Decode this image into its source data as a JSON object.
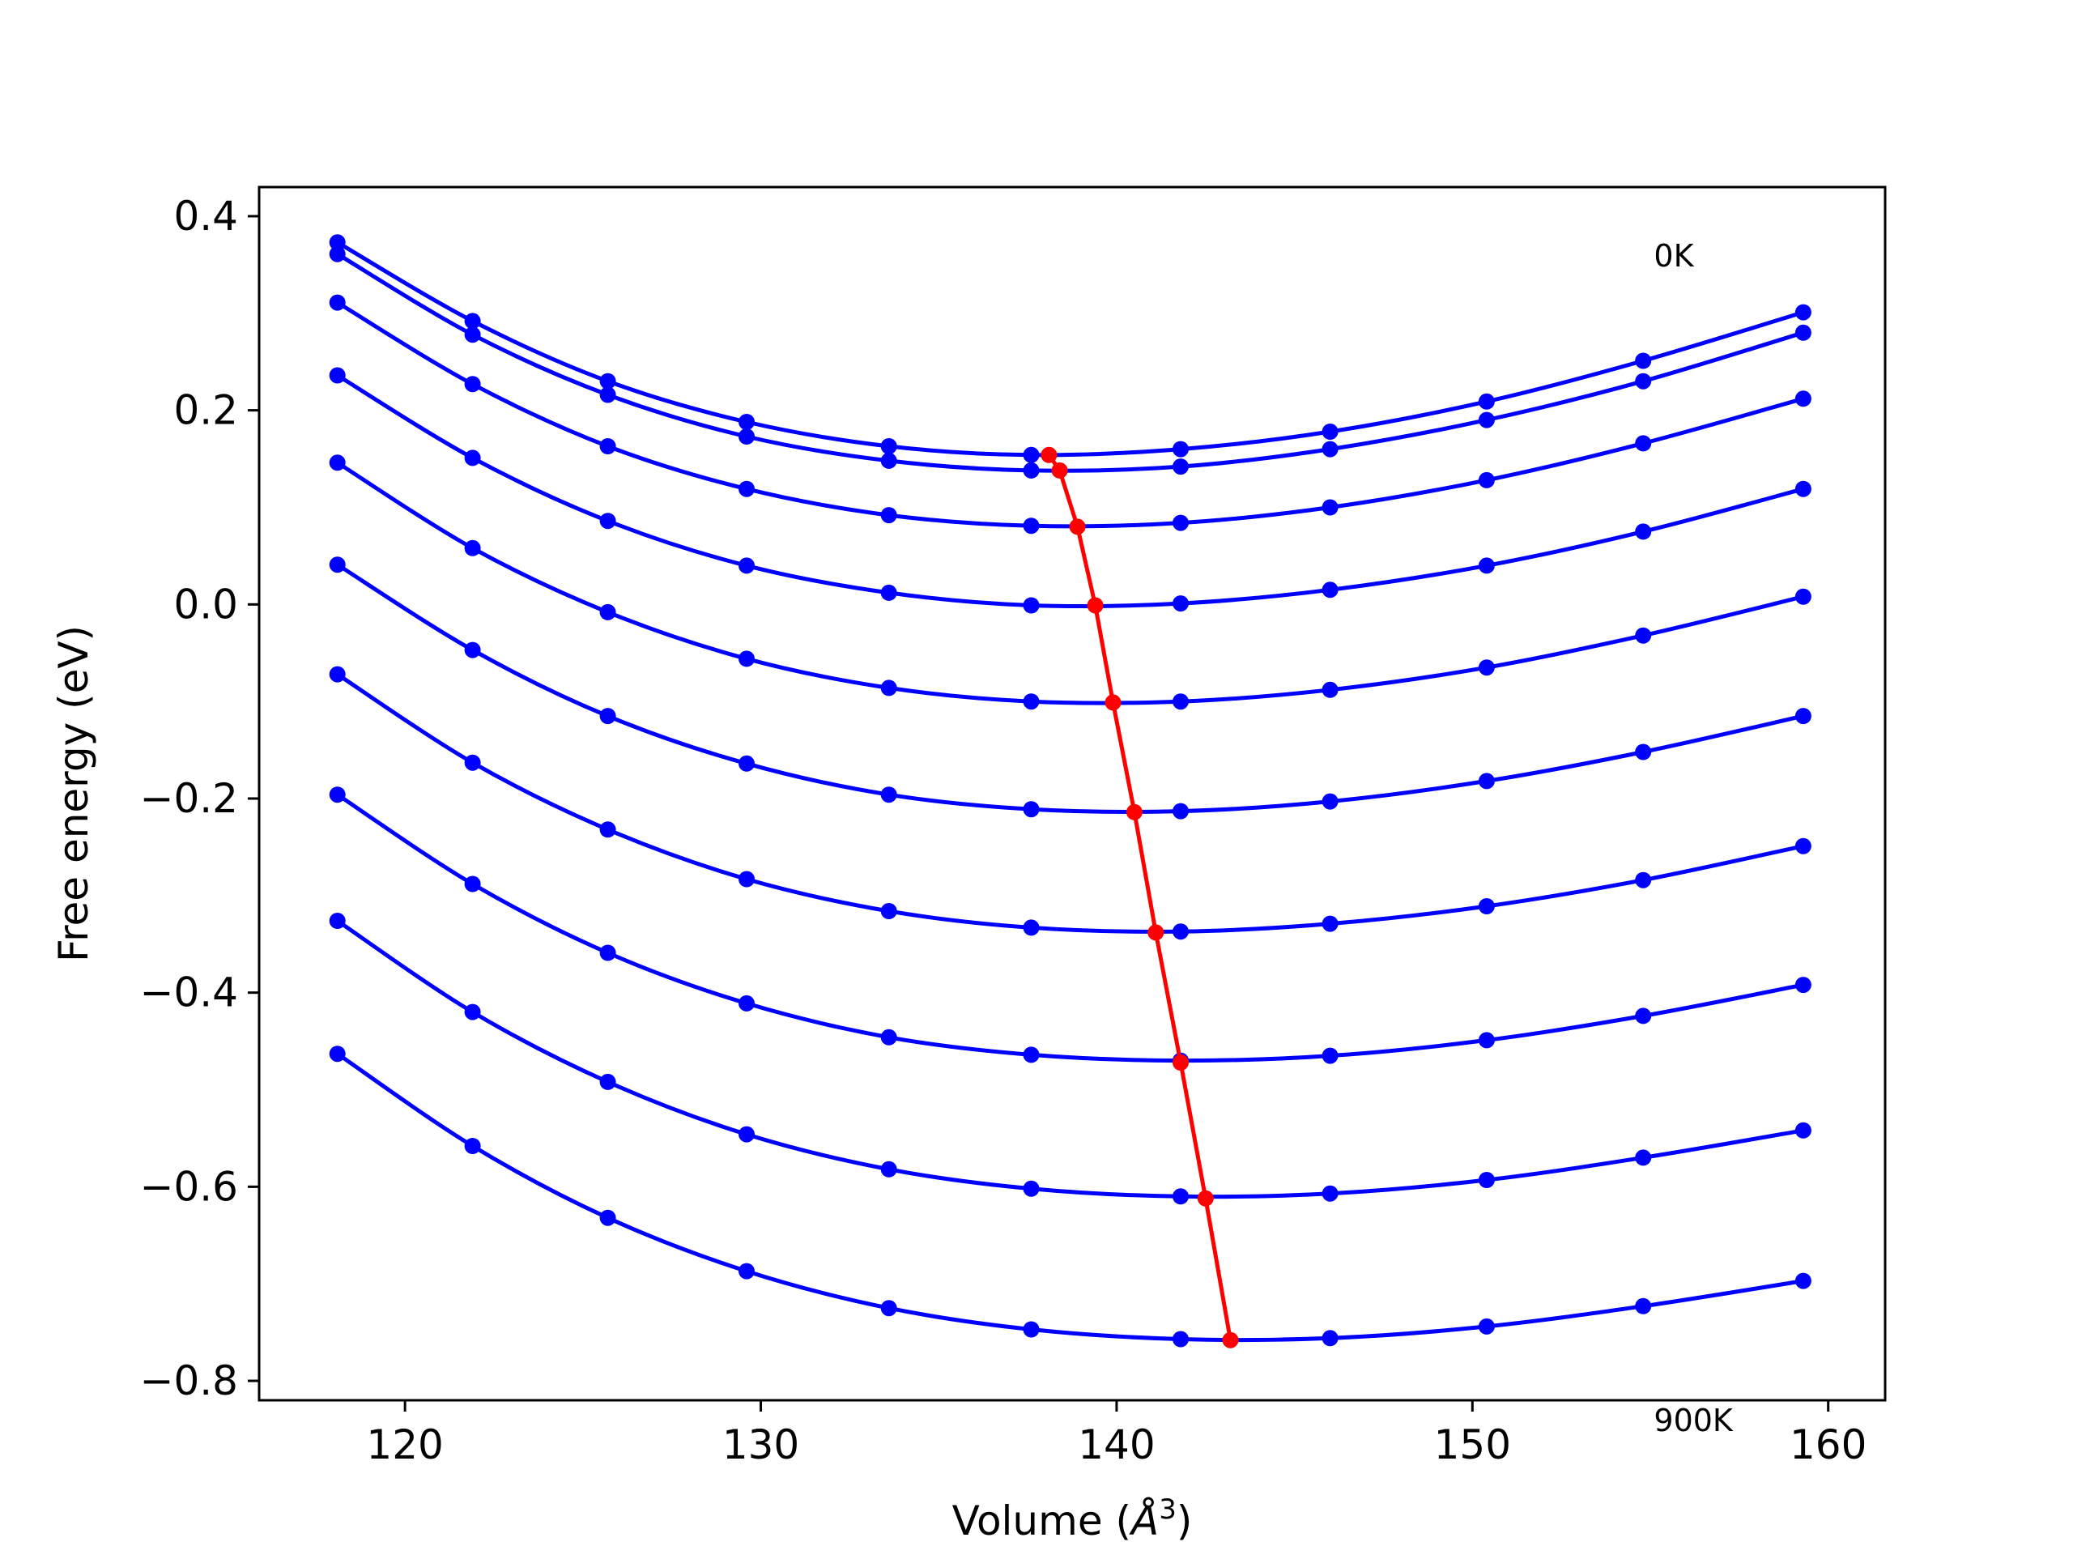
{
  "chart_data": {
    "type": "line",
    "title": "",
    "xlabel": "Volume (Å³)",
    "xlabel_parts": {
      "prefix": "Volume (",
      "symbol": "Å",
      "exponent": "3",
      "suffix": ")"
    },
    "ylabel": "Free energy (eV)",
    "xlim": [
      115.9,
      161.6
    ],
    "ylim": [
      -0.82,
      0.43
    ],
    "xticks": [
      120,
      130,
      140,
      150,
      160
    ],
    "xtick_labels": [
      "120",
      "130",
      "140",
      "150",
      "160"
    ],
    "yticks": [
      -0.8,
      -0.6,
      -0.4,
      -0.2,
      0.0,
      0.2,
      0.4
    ],
    "ytick_labels": [
      "−0.8",
      "−0.6",
      "−0.4",
      "−0.2",
      "0.0",
      "0.2",
      "0.4"
    ],
    "grid": false,
    "legend": "none",
    "annotations": [
      {
        "text": "0K",
        "x": 155.1,
        "y": 0.36
      },
      {
        "text": "900K",
        "x": 155.1,
        "y": -0.84
      }
    ],
    "x": [
      118.1,
      121.9,
      125.7,
      129.6,
      133.6,
      137.6,
      141.8,
      146.0,
      150.4,
      154.8,
      159.3
    ],
    "series": [
      {
        "values": [
          0.373,
          0.292,
          0.23,
          0.188,
          0.163,
          0.154,
          0.16,
          0.178,
          0.209,
          0.251,
          0.301
        ]
      },
      {
        "values": [
          0.361,
          0.278,
          0.216,
          0.173,
          0.148,
          0.138,
          0.142,
          0.16,
          0.19,
          0.23,
          0.28
        ]
      },
      {
        "values": [
          0.311,
          0.227,
          0.163,
          0.119,
          0.092,
          0.081,
          0.084,
          0.1,
          0.128,
          0.166,
          0.212
        ]
      },
      {
        "values": [
          0.236,
          0.151,
          0.086,
          0.04,
          0.012,
          -0.001,
          0.001,
          0.015,
          0.04,
          0.075,
          0.119
        ]
      },
      {
        "values": [
          0.146,
          0.058,
          -0.008,
          -0.056,
          -0.086,
          -0.1,
          -0.1,
          -0.088,
          -0.065,
          -0.032,
          0.008
        ]
      },
      {
        "values": [
          0.041,
          -0.047,
          -0.115,
          -0.164,
          -0.196,
          -0.211,
          -0.213,
          -0.203,
          -0.182,
          -0.152,
          -0.115
        ]
      },
      {
        "values": [
          -0.072,
          -0.163,
          -0.232,
          -0.283,
          -0.316,
          -0.333,
          -0.337,
          -0.329,
          -0.311,
          -0.284,
          -0.249
        ]
      },
      {
        "values": [
          -0.196,
          -0.288,
          -0.359,
          -0.411,
          -0.446,
          -0.464,
          -0.47,
          -0.465,
          -0.449,
          -0.424,
          -0.392
        ]
      },
      {
        "values": [
          -0.326,
          -0.42,
          -0.492,
          -0.546,
          -0.582,
          -0.602,
          -0.61,
          -0.607,
          -0.593,
          -0.57,
          -0.542
        ]
      },
      {
        "values": [
          -0.463,
          -0.558,
          -0.632,
          -0.687,
          -0.725,
          -0.747,
          -0.757,
          -0.756,
          -0.744,
          -0.723,
          -0.697
        ]
      }
    ],
    "minimum_series": {
      "x": [
        138.1,
        138.4,
        138.9,
        139.4,
        139.9,
        140.5,
        141.1,
        141.8,
        142.5,
        143.2
      ],
      "values": [
        0.154,
        0.138,
        0.08,
        -0.001,
        -0.101,
        -0.214,
        -0.338,
        -0.472,
        -0.612,
        -0.758
      ]
    },
    "colors": {
      "curves": "#0000ff",
      "minimum": "#ff0000",
      "axes": "#000000"
    }
  }
}
